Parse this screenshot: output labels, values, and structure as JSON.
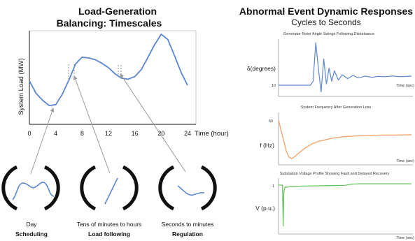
{
  "left_panel": {
    "title_line1": "Load-Generation",
    "title_line2": "Balancing: Timescales",
    "ylabel": "System Load (MW)",
    "xlabel": "Time (hour)",
    "x_ticks": [
      "0",
      "4",
      "8",
      "12",
      "16",
      "20",
      "24"
    ],
    "scales": [
      {
        "line1": "Day",
        "line2": "Scheduling"
      },
      {
        "line1": "Tens of minutes to hours",
        "line2": "Load following"
      },
      {
        "line1": "Seconds to minutes",
        "line2": "Regulation"
      }
    ]
  },
  "right_panel": {
    "title": "Abnormal Event Dynamic Responses",
    "subtitle": "Cycles to Seconds",
    "charts": [
      {
        "title": "Generator Rotor Angle Swings Following Disturbance",
        "ylabel": "δ(degrees)",
        "ytick": "10",
        "xlabel": "Time (sec)"
      },
      {
        "title": "System Frequency After Generation Loss",
        "ylabel": "f (Hz)",
        "ytick": "60",
        "xlabel": "Time (sec)"
      },
      {
        "title": "Substation Voltage Profile Showing Fault and Delayed Recovery",
        "ylabel": "V (p.u.)",
        "ytick": "1",
        "xlabel": "Time (sec)"
      }
    ]
  },
  "chart_data": [
    {
      "type": "line",
      "title": "Load-Generation Balancing: Timescales",
      "xlabel": "Time (hour)",
      "ylabel": "System Load (MW)",
      "xlim": [
        0,
        24
      ],
      "x": [
        0,
        1,
        2,
        3,
        4,
        5,
        6,
        7,
        8,
        9,
        10,
        11,
        12,
        13,
        14,
        15,
        16,
        17,
        18,
        19,
        20,
        21,
        22,
        23,
        24
      ],
      "series": [
        {
          "values": [
            0.47,
            0.33,
            0.25,
            0.19,
            0.2,
            0.32,
            0.48,
            0.66,
            0.74,
            0.73,
            0.71,
            0.67,
            0.62,
            0.55,
            0.5,
            0.49,
            0.52,
            0.6,
            0.74,
            0.88,
            1.0,
            0.94,
            0.76,
            0.57,
            0.42
          ]
        }
      ],
      "color": "#5b86cf"
    },
    {
      "type": "line",
      "title": "Generator Rotor Angle Swings Following Disturbance",
      "xlabel": "Time (sec)",
      "ylabel": "δ(degrees)",
      "x": [
        0.0,
        0.24,
        0.26,
        0.28,
        0.3,
        0.32,
        0.34,
        0.36,
        0.38,
        0.4,
        0.42,
        0.45,
        0.48,
        0.52,
        0.56,
        0.6,
        0.65,
        0.7,
        0.75,
        0.8,
        0.86,
        0.92,
        1.0
      ],
      "series": [
        {
          "values": [
            10,
            10,
            10.6,
            16.5,
            12.5,
            9.0,
            14.0,
            10.2,
            12.6,
            10.6,
            12.2,
            10.8,
            11.6,
            11.0,
            11.5,
            11.1,
            11.4,
            11.2,
            11.35,
            11.3,
            11.4,
            11.3,
            11.4
          ]
        }
      ],
      "color": "#5b86cf"
    },
    {
      "type": "line",
      "title": "System Frequency After Generation Loss",
      "xlabel": "Time (sec)",
      "ylabel": "f (Hz)",
      "x": [
        0.0,
        0.02,
        0.04,
        0.06,
        0.08,
        0.1,
        0.12,
        0.15,
        0.2,
        0.25,
        0.3,
        0.4,
        0.5,
        0.6,
        0.7,
        0.8,
        0.9,
        1.0
      ],
      "series": [
        {
          "values": [
            60.0,
            59.6,
            59.2,
            58.8,
            58.6,
            58.55,
            58.62,
            58.75,
            58.95,
            59.1,
            59.2,
            59.32,
            59.38,
            59.41,
            59.43,
            59.44,
            59.44,
            59.45
          ]
        }
      ],
      "color": "#f3a671"
    },
    {
      "type": "line",
      "title": "Substation Voltage Profile Showing Fault and Delayed Recovery",
      "xlabel": "Time (sec)",
      "ylabel": "V (p.u.)",
      "x": [
        0.0,
        0.03,
        0.035,
        0.04,
        0.045,
        0.05,
        0.06,
        0.08,
        0.1,
        0.15,
        0.2,
        0.3,
        0.4,
        0.5,
        0.55,
        0.6,
        0.7,
        0.8,
        0.9,
        1.0
      ],
      "series": [
        {
          "values": [
            1.0,
            1.0,
            0.1,
            0.85,
            0.92,
            0.96,
            0.95,
            0.965,
            0.97,
            0.975,
            0.98,
            0.985,
            0.99,
            0.995,
            1.02,
            1.03,
            1.03,
            1.03,
            1.03,
            1.03
          ]
        }
      ],
      "color": "#5fc257"
    }
  ]
}
